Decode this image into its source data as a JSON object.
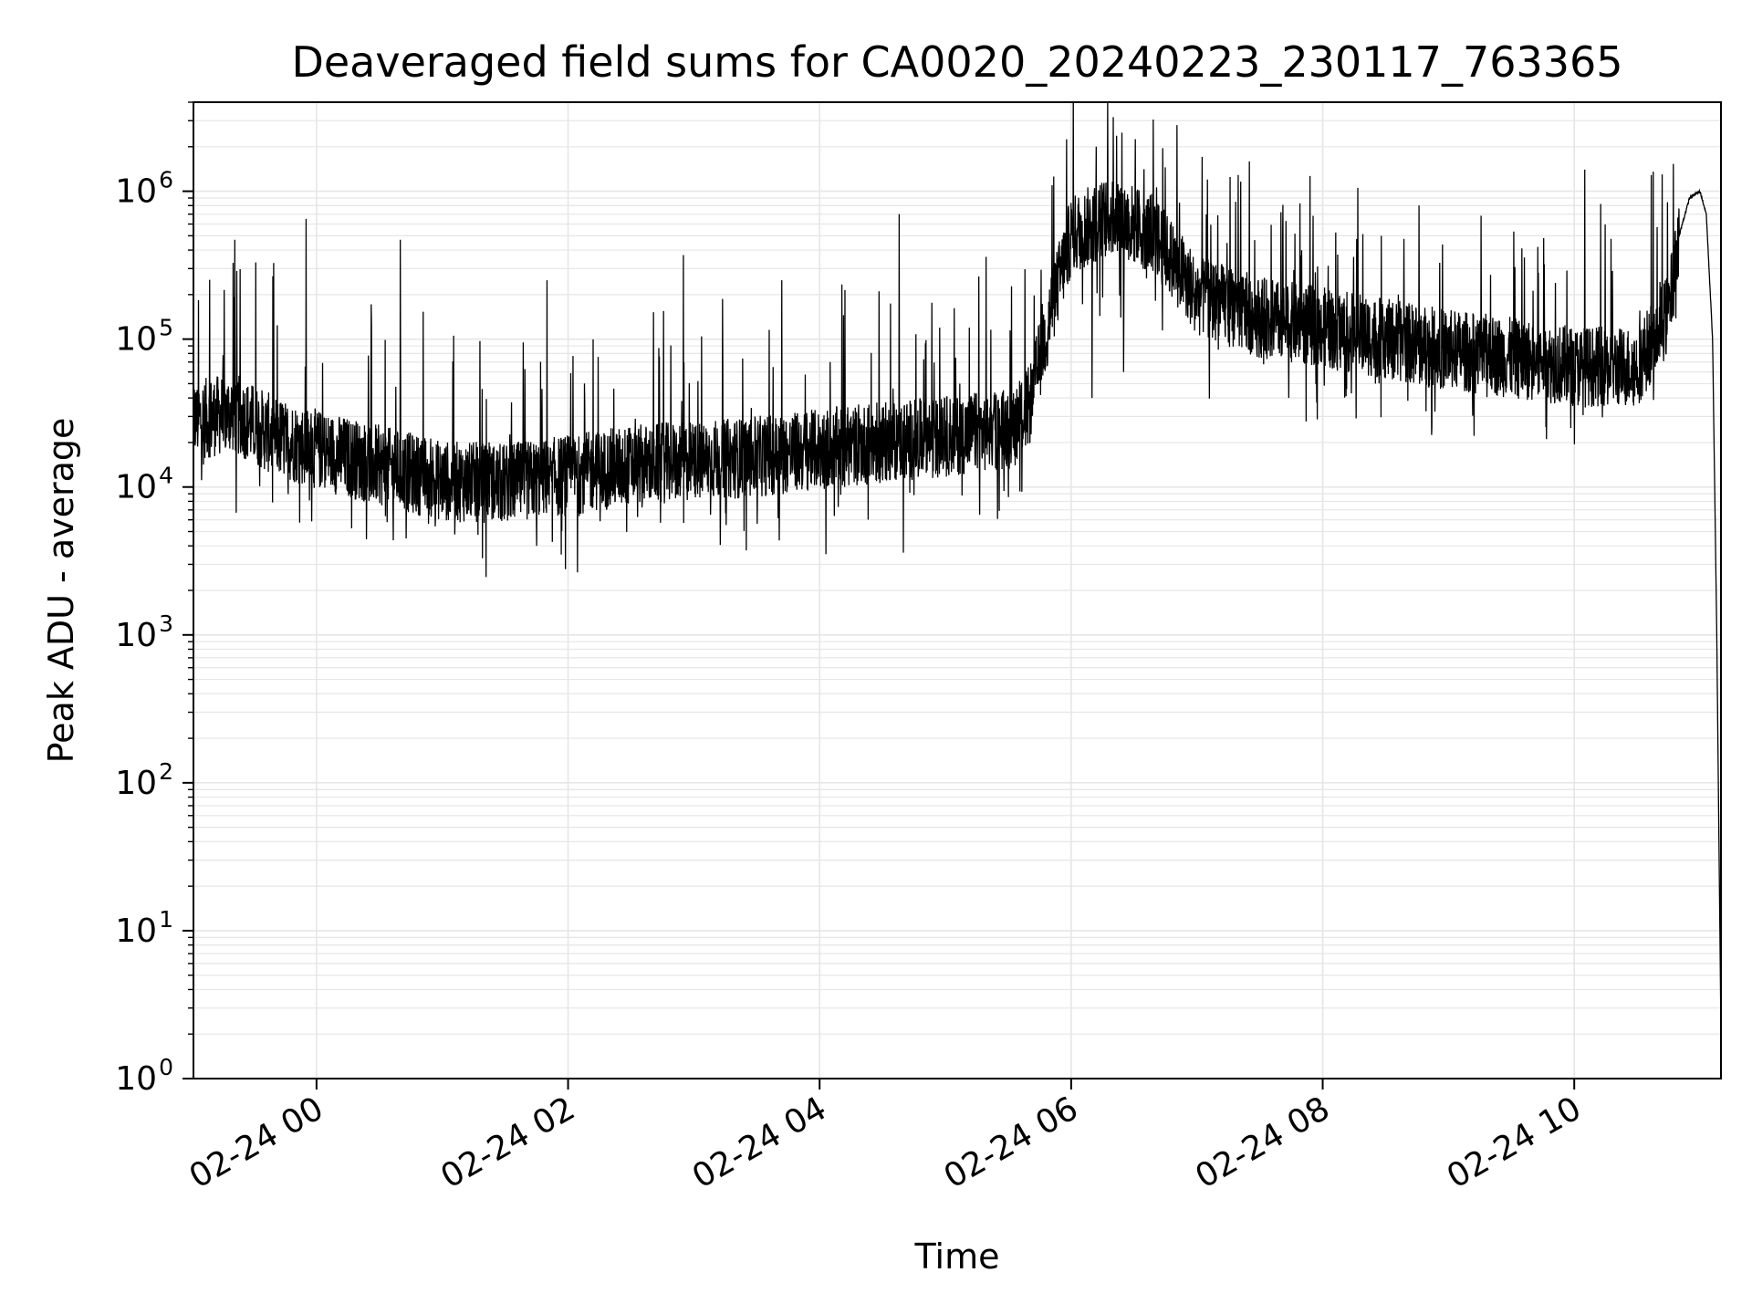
{
  "chart_data": {
    "type": "line",
    "title": "Deaveraged field sums for CA0020_20240223_230117_763365",
    "xlabel": "Time",
    "ylabel": "Peak ADU - average",
    "yscale": "log",
    "ylim": [
      1,
      4000000
    ],
    "xlim": [
      "2024-02-23T23:01:17",
      "2024-02-24T11:10:00"
    ],
    "grid": true,
    "line_color": "#000000",
    "grid_color": "#e6e6e6",
    "x_ticks": [
      {
        "value": "2024-02-24T00:00:00",
        "label": "02-24 00"
      },
      {
        "value": "2024-02-24T02:00:00",
        "label": "02-24 02"
      },
      {
        "value": "2024-02-24T04:00:00",
        "label": "02-24 04"
      },
      {
        "value": "2024-02-24T06:00:00",
        "label": "02-24 06"
      },
      {
        "value": "2024-02-24T08:00:00",
        "label": "02-24 08"
      },
      {
        "value": "2024-02-24T10:00:00",
        "label": "02-24 10"
      }
    ],
    "y_ticks": [
      {
        "value": 1,
        "base": "10",
        "exp": "0"
      },
      {
        "value": 10,
        "base": "10",
        "exp": "1"
      },
      {
        "value": 100,
        "base": "10",
        "exp": "2"
      },
      {
        "value": 1000,
        "base": "10",
        "exp": "3"
      },
      {
        "value": 10000,
        "base": "10",
        "exp": "4"
      },
      {
        "value": 100000,
        "base": "10",
        "exp": "5"
      },
      {
        "value": 1000000,
        "base": "10",
        "exp": "6"
      }
    ],
    "series": [
      {
        "baseline": {
          "x": [
            "2024-02-23T23:01:17",
            "2024-02-23T23:20:00",
            "2024-02-23T23:40:00",
            "2024-02-24T00:00:00",
            "2024-02-24T00:30:00",
            "2024-02-24T01:00:00",
            "2024-02-24T01:30:00",
            "2024-02-24T02:00:00",
            "2024-02-24T02:30:00",
            "2024-02-24T03:00:00",
            "2024-02-24T03:30:00",
            "2024-02-24T04:00:00",
            "2024-02-24T04:30:00",
            "2024-02-24T05:00:00",
            "2024-02-24T05:30:00",
            "2024-02-24T05:40:00",
            "2024-02-24T05:50:00",
            "2024-02-24T06:00:00",
            "2024-02-24T06:20:00",
            "2024-02-24T06:40:00",
            "2024-02-24T07:00:00",
            "2024-02-24T07:30:00",
            "2024-02-24T08:00:00",
            "2024-02-24T08:30:00",
            "2024-02-24T09:00:00",
            "2024-02-24T09:30:00",
            "2024-02-24T10:00:00",
            "2024-02-24T10:30:00",
            "2024-02-24T10:45:00",
            "2024-02-24T10:50:00",
            "2024-02-24T10:55:00",
            "2024-02-24T11:00:00",
            "2024-02-24T11:03:00",
            "2024-02-24T11:06:00",
            "2024-02-24T11:08:00",
            "2024-02-24T11:10:00"
          ],
          "y": [
            28000,
            32000,
            22000,
            18000,
            14000,
            11000,
            10500,
            12000,
            14000,
            15000,
            16000,
            18000,
            20000,
            22000,
            25000,
            35000,
            150000,
            500000,
            700000,
            500000,
            200000,
            140000,
            120000,
            100000,
            85000,
            75000,
            65000,
            65000,
            150000,
            500000,
            900000,
            1000000,
            700000,
            100000,
            1000,
            2
          ]
        },
        "spikes": [
          {
            "x": "2024-02-23T23:21:00",
            "y": 470000
          },
          {
            "x": "2024-02-23T23:31:00",
            "y": 330000
          },
          {
            "x": "2024-02-23T23:55:00",
            "y": 650000
          },
          {
            "x": "2024-02-24T00:40:00",
            "y": 470000
          },
          {
            "x": "2024-02-24T01:50:00",
            "y": 250000
          },
          {
            "x": "2024-02-24T02:55:00",
            "y": 370000
          },
          {
            "x": "2024-02-24T03:42:00",
            "y": 250000
          },
          {
            "x": "2024-02-24T04:05:00",
            "y": 70000
          },
          {
            "x": "2024-02-24T04:38:00",
            "y": 700000
          },
          {
            "x": "2024-02-24T06:12:00",
            "y": 2000000
          },
          {
            "x": "2024-02-24T06:25:00",
            "y": 1500000
          },
          {
            "x": "2024-02-24T07:05:00",
            "y": 1200000
          },
          {
            "x": "2024-02-24T10:05:00",
            "y": 1400000
          },
          {
            "x": "2024-02-24T10:42:00",
            "y": 1300000
          }
        ],
        "dips": [
          {
            "x": "2024-02-24T01:45:00",
            "y": 4000
          },
          {
            "x": "2024-02-24T04:40:00",
            "y": 3600
          },
          {
            "x": "2024-02-24T06:10:00",
            "y": 40000
          },
          {
            "x": "2024-02-24T06:25:00",
            "y": 60000
          }
        ]
      }
    ]
  }
}
